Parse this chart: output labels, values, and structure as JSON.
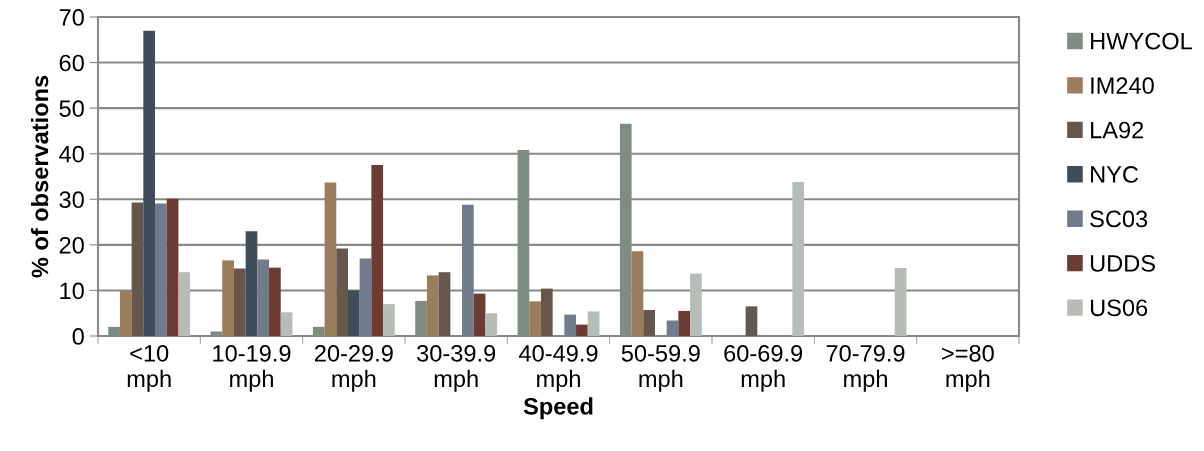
{
  "chart_data": {
    "type": "bar",
    "xlabel": "Speed",
    "ylabel": "% of observations",
    "categories": [
      "<10\nmph",
      "10-19.9\nmph",
      "20-29.9\nmph",
      "30-39.9\nmph",
      "40-49.9\nmph",
      "50-59.9\nmph",
      "60-69.9\nmph",
      "70-79.9\nmph",
      ">=80\nmph"
    ],
    "series": [
      {
        "name": "HWYCOL",
        "color": "#7f8c82",
        "values": [
          2,
          1,
          2,
          7.7,
          40.8,
          46.6,
          0,
          0,
          0
        ]
      },
      {
        "name": "IM240",
        "color": "#9a7d5a",
        "values": [
          10,
          16.6,
          33.7,
          13.3,
          7.6,
          18.6,
          0,
          0,
          0
        ]
      },
      {
        "name": "LA92",
        "color": "#67564b",
        "values": [
          29.3,
          14.8,
          19.2,
          14,
          10.4,
          5.7,
          6.5,
          0,
          0
        ]
      },
      {
        "name": "NYC",
        "color": "#3f4d5b",
        "values": [
          67,
          23,
          10,
          0,
          0,
          0,
          0,
          0,
          0
        ]
      },
      {
        "name": "SC03",
        "color": "#707c8c",
        "values": [
          29.1,
          16.8,
          17,
          28.8,
          4.7,
          3.4,
          0,
          0,
          0
        ]
      },
      {
        "name": "UDDS",
        "color": "#6c3b33",
        "values": [
          30.1,
          15,
          37.5,
          9.3,
          2.5,
          5.5,
          0,
          0,
          0
        ]
      },
      {
        "name": "US06",
        "color": "#b5bdb6",
        "values": [
          14,
          5.2,
          7,
          5,
          5.4,
          13.7,
          33.8,
          14.9,
          0
        ]
      }
    ],
    "ylim": [
      0,
      70
    ],
    "yticks": [
      0,
      10,
      20,
      30,
      40,
      50,
      60,
      70
    ],
    "grid": "y",
    "legend": "right"
  }
}
